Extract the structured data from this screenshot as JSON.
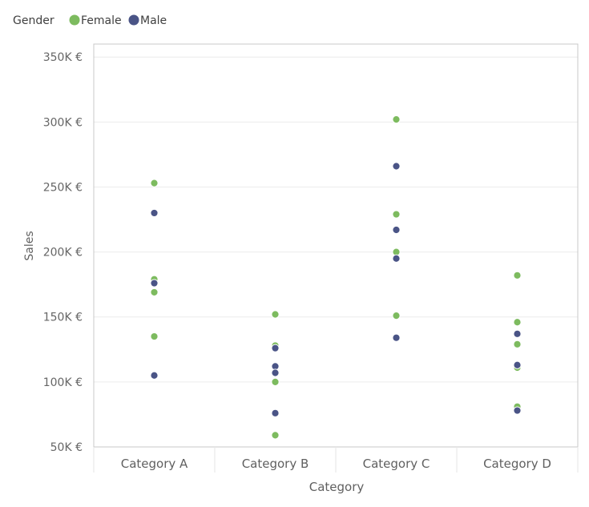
{
  "chart_data": {
    "type": "scatter",
    "legend": {
      "title": "Gender",
      "placement": "top-left",
      "entries": [
        {
          "name": "Female",
          "color": "#7dbb5f"
        },
        {
          "name": "Male",
          "color": "#4a5486"
        }
      ]
    },
    "xlabel": "Category",
    "ylabel": "Sales",
    "categories": [
      "Category A",
      "Category B",
      "Category C",
      "Category D"
    ],
    "ylim": [
      50000,
      360000
    ],
    "yticks": [
      50000,
      100000,
      150000,
      200000,
      250000,
      300000,
      350000
    ],
    "ytick_labels": [
      "50K €",
      "100K €",
      "150K €",
      "200K €",
      "250K €",
      "300K €",
      "350K €"
    ],
    "grid": true,
    "series": [
      {
        "name": "Female",
        "color": "#7dbb5f",
        "points": [
          {
            "category": "Category A",
            "y": 253000
          },
          {
            "category": "Category A",
            "y": 179000
          },
          {
            "category": "Category A",
            "y": 169000
          },
          {
            "category": "Category A",
            "y": 135000
          },
          {
            "category": "Category B",
            "y": 152000
          },
          {
            "category": "Category B",
            "y": 128000
          },
          {
            "category": "Category B",
            "y": 100000
          },
          {
            "category": "Category B",
            "y": 59000
          },
          {
            "category": "Category C",
            "y": 302000
          },
          {
            "category": "Category C",
            "y": 229000
          },
          {
            "category": "Category C",
            "y": 200000
          },
          {
            "category": "Category C",
            "y": 151000
          },
          {
            "category": "Category D",
            "y": 182000
          },
          {
            "category": "Category D",
            "y": 146000
          },
          {
            "category": "Category D",
            "y": 129000
          },
          {
            "category": "Category D",
            "y": 111000
          },
          {
            "category": "Category D",
            "y": 81000
          }
        ]
      },
      {
        "name": "Male",
        "color": "#4a5486",
        "points": [
          {
            "category": "Category A",
            "y": 230000
          },
          {
            "category": "Category A",
            "y": 176000
          },
          {
            "category": "Category A",
            "y": 105000
          },
          {
            "category": "Category B",
            "y": 126000
          },
          {
            "category": "Category B",
            "y": 112000
          },
          {
            "category": "Category B",
            "y": 107000
          },
          {
            "category": "Category B",
            "y": 76000
          },
          {
            "category": "Category C",
            "y": 266000
          },
          {
            "category": "Category C",
            "y": 217000
          },
          {
            "category": "Category C",
            "y": 195000
          },
          {
            "category": "Category C",
            "y": 134000
          },
          {
            "category": "Category D",
            "y": 137000
          },
          {
            "category": "Category D",
            "y": 113000
          },
          {
            "category": "Category D",
            "y": 78000
          }
        ]
      }
    ]
  }
}
